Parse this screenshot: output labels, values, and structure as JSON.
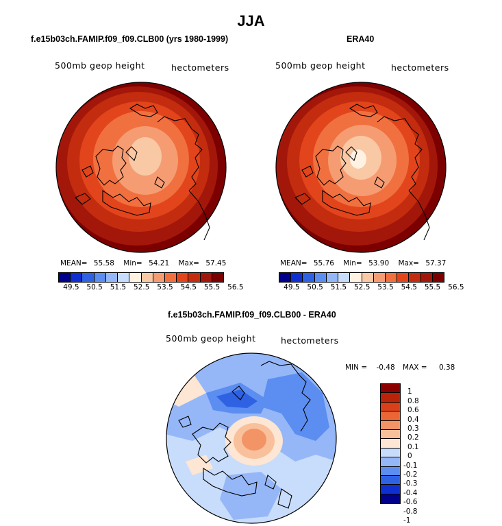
{
  "figure": {
    "title": "JJA",
    "colors": {
      "seq": [
        "#00008b",
        "#0f2fd1",
        "#2f62e3",
        "#5c8df1",
        "#95b7f8",
        "#c8dcfb",
        "#fff2e2",
        "#f9c8a4",
        "#f69c72",
        "#f1703f",
        "#e2451c",
        "#c32c0e",
        "#a3170a",
        "#7d0000"
      ],
      "diff": [
        "#00008b",
        "#0f2fd1",
        "#2f62e3",
        "#5c8df1",
        "#95b7f8",
        "#c8dcfb",
        "#fde6d3",
        "#f9c09c",
        "#f39466",
        "#ec6635",
        "#d8401a",
        "#b8230a",
        "#8a0000"
      ]
    },
    "panels": [
      {
        "title": "f.e15b03ch.FAMIP.f09_f09.CLB00 (yrs 1980-1999)",
        "variable": "500mb geop height",
        "units": "hectometers",
        "mean_label": "MEAN=",
        "mean": "55.58",
        "min_label": "Min=",
        "min": "54.21",
        "max_label": "Max=",
        "max": "57.45"
      },
      {
        "title": "ERA40",
        "variable": "500mb geop height",
        "units": "hectometers",
        "mean_label": "MEAN=",
        "mean": "55.76",
        "min_label": "Min=",
        "min": "53.90",
        "max_label": "Max=",
        "max": "57.37"
      },
      {
        "title": "f.e15b03ch.FAMIP.f09_f09.CLB00 - ERA40",
        "variable": "500mb geop height",
        "units": "hectometers",
        "min_label": "MIN =",
        "min": "-0.48",
        "max_label": "MAX =",
        "max": "0.38"
      }
    ],
    "colorbar_h_ticks": [
      "49.5",
      "50.5",
      "51.5",
      "52.5",
      "53.5",
      "54.5",
      "55.5",
      "56.5"
    ],
    "colorbar_v_labels": [
      "1",
      "0.8",
      "0.6",
      "0.4",
      "0.3",
      "0.2",
      "0.1",
      "0",
      "-0.1",
      "-0.2",
      "-0.3",
      "-0.4",
      "-0.6",
      "-0.8",
      "-1"
    ]
  }
}
